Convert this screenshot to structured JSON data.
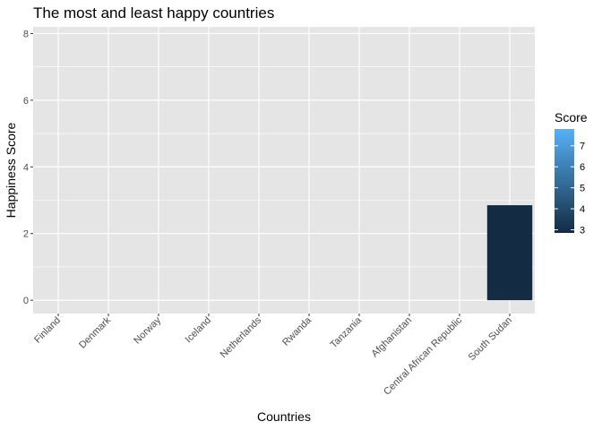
{
  "chart_data": {
    "type": "bar",
    "title": "The most and least happy countries",
    "xlabel": "Countries",
    "ylabel": "Happiness Score",
    "categories": [
      "Finland",
      "Denmark",
      "Norway",
      "Iceland",
      "Netherlands",
      "Rwanda",
      "Tanzania",
      "Afghanistan",
      "Central African Republic",
      "South Sudan"
    ],
    "values": [
      null,
      null,
      null,
      null,
      null,
      null,
      null,
      null,
      null,
      2.85
    ],
    "ylim": [
      -0.4,
      8.2
    ],
    "yticks": [
      "0",
      "2",
      "4",
      "6",
      "8"
    ],
    "ytick_values": [
      0,
      2,
      4,
      6,
      8
    ],
    "grid": true,
    "legend": {
      "title": "Score",
      "position": "right",
      "labels": [
        "3",
        "4",
        "5",
        "6",
        "7"
      ],
      "label_values": [
        3,
        4,
        5,
        6,
        7
      ],
      "range": [
        2.85,
        7.8
      ],
      "color_low": "#132b43",
      "color_high": "#56b1f7"
    },
    "panel_background": "#e5e5e5",
    "grid_color": "#ffffff"
  }
}
